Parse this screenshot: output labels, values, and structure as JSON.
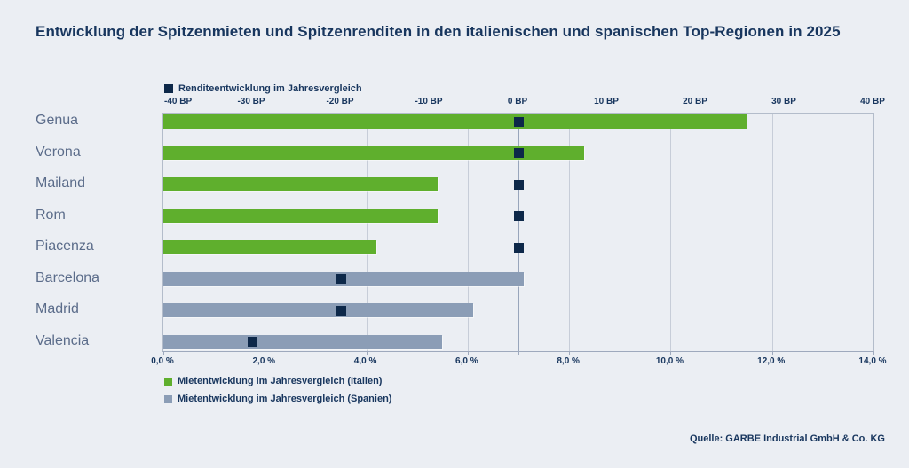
{
  "title": "Entwicklung der Spitzenmieten und Spitzenrenditen in den italienischen und spanischen Top-Regionen in 2025",
  "source": "Quelle: GARBE Industrial GmbH & Co. KG",
  "legend": {
    "top": "Renditeentwicklung im Jahresvergleich",
    "italy": "Mietentwicklung im Jahresvergleich (Italien)",
    "spain": "Mietentwicklung im Jahresvergleich (Spanien)"
  },
  "colors": {
    "background": "#EBEEF3",
    "title_text": "#18365E",
    "yield_marker_navy": "#0D2849",
    "italy_green": "#5FAF2D",
    "spain_gray_blue": "#8B9DB6",
    "city_label": "#5B6C8A",
    "gridline": "#C7CDD8",
    "zero_line": "#98A5BB"
  },
  "chart_data": {
    "type": "bar",
    "orientation": "horizontal",
    "title": "Entwicklung der Spitzenmieten und Spitzenrenditen in den italienischen und spanischen Top-Regionen in 2025",
    "grid": true,
    "legend_position": "top-left (yield) and bottom-left (rents)",
    "categories": [
      "Genua",
      "Verona",
      "Mailand",
      "Rom",
      "Piacenza",
      "Barcelona",
      "Madrid",
      "Valencia"
    ],
    "rows": [
      {
        "city": "Genua",
        "country": "Italien",
        "rent_pct": 11.5,
        "yield_bp": 0
      },
      {
        "city": "Verona",
        "country": "Italien",
        "rent_pct": 8.3,
        "yield_bp": 0
      },
      {
        "city": "Mailand",
        "country": "Italien",
        "rent_pct": 5.4,
        "yield_bp": 0
      },
      {
        "city": "Rom",
        "country": "Italien",
        "rent_pct": 5.4,
        "yield_bp": 0
      },
      {
        "city": "Piacenza",
        "country": "Italien",
        "rent_pct": 4.2,
        "yield_bp": 0
      },
      {
        "city": "Barcelona",
        "country": "Spanien",
        "rent_pct": 7.1,
        "yield_bp": -20
      },
      {
        "city": "Madrid",
        "country": "Spanien",
        "rent_pct": 6.1,
        "yield_bp": -20
      },
      {
        "city": "Valencia",
        "country": "Spanien",
        "rent_pct": 5.5,
        "yield_bp": -30
      }
    ],
    "series": [
      {
        "name": "Mietentwicklung im Jahresvergleich (Italien)",
        "unit": "%",
        "values": [
          11.5,
          8.3,
          5.4,
          5.4,
          4.2,
          null,
          null,
          null
        ]
      },
      {
        "name": "Mietentwicklung im Jahresvergleich (Spanien)",
        "unit": "%",
        "values": [
          null,
          null,
          null,
          null,
          null,
          7.1,
          6.1,
          5.5
        ]
      },
      {
        "name": "Renditeentwicklung im Jahresvergleich",
        "unit": "BP",
        "values": [
          0,
          0,
          0,
          0,
          0,
          -20,
          -20,
          -30
        ]
      }
    ],
    "axes": {
      "top": {
        "unit": "BP",
        "min": -40,
        "max": 40,
        "tick_values": [
          -40,
          -30,
          -20,
          -10,
          0,
          10,
          20,
          30,
          40
        ],
        "tick_labels": [
          "-40 BP",
          "-30 BP",
          "-20 BP",
          "-10 BP",
          "0 BP",
          "10 BP",
          "20 BP",
          "30 BP",
          "40 BP"
        ]
      },
      "bottom": {
        "unit": "%",
        "min": 0,
        "max": 14,
        "tick_values": [
          0,
          2,
          4,
          6,
          8,
          10,
          12,
          14
        ],
        "tick_labels": [
          "0,0 %",
          "2,0 %",
          "4,0 %",
          "6,0 %",
          "8,0 %",
          "10,0 %",
          "12,0 %",
          "14,0 %"
        ]
      }
    }
  }
}
